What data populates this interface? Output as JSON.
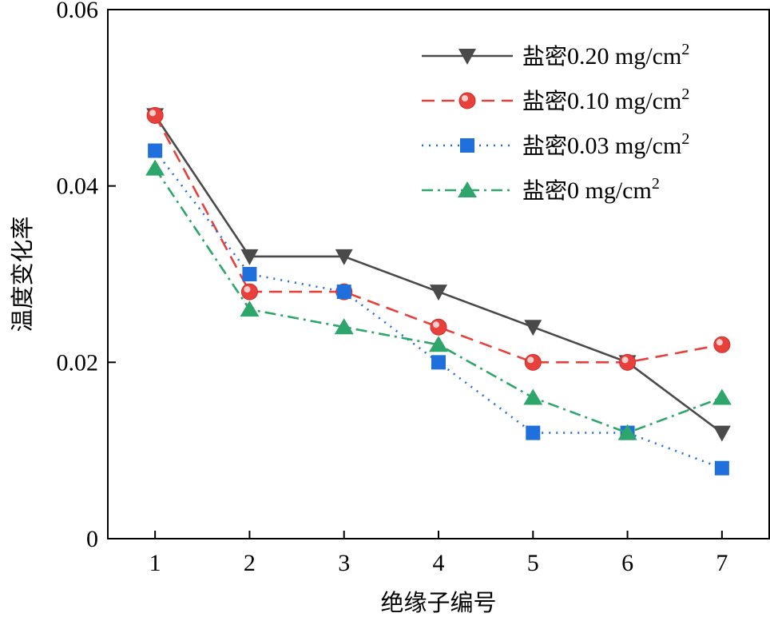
{
  "chart_data": {
    "type": "line",
    "title": "",
    "xlabel": "绝缘子编号",
    "ylabel": "温度变化率",
    "x": [
      1,
      2,
      3,
      4,
      5,
      6,
      7
    ],
    "xticks": [
      "1",
      "2",
      "3",
      "4",
      "5",
      "6",
      "7"
    ],
    "yticks": [
      {
        "value": 0,
        "label": "0"
      },
      {
        "value": 0.02,
        "label": "0.02"
      },
      {
        "value": 0.04,
        "label": "0.04"
      },
      {
        "value": 0.06,
        "label": "0.06"
      }
    ],
    "xlim": [
      0.5,
      7.5
    ],
    "ylim": [
      0,
      0.06
    ],
    "legend_position": "top-right",
    "series": [
      {
        "name": "盐密0.20 mg/cm2",
        "prefix": "盐密",
        "value_text": "0.20 mg/cm",
        "sup": "2",
        "values": [
          0.048,
          0.032,
          0.032,
          0.028,
          0.024,
          0.02,
          0.012
        ],
        "color": "#4a4a4a",
        "marker": "triangle-down",
        "dash": "solid"
      },
      {
        "name": "盐密0.10 mg/cm2",
        "prefix": "盐密",
        "value_text": "0.10 mg/cm",
        "sup": "2",
        "values": [
          0.048,
          0.028,
          0.028,
          0.024,
          0.02,
          0.02,
          0.022
        ],
        "color": "#e8413c",
        "marker": "circle",
        "dash": "dashed"
      },
      {
        "name": "盐密0.03 mg/cm2",
        "prefix": "盐密",
        "value_text": "0.03 mg/cm",
        "sup": "2",
        "values": [
          0.044,
          0.03,
          0.028,
          0.02,
          0.012,
          0.012,
          0.008
        ],
        "color": "#1f6fdc",
        "marker": "square",
        "dash": "dotted"
      },
      {
        "name": "盐密0 mg/cm2",
        "prefix": "盐密",
        "value_text": "0 mg/cm",
        "sup": "2",
        "values": [
          0.042,
          0.026,
          0.024,
          0.022,
          0.016,
          0.012,
          0.016
        ],
        "color": "#2ea56a",
        "marker": "triangle-up",
        "dash": "dashdot"
      }
    ]
  }
}
